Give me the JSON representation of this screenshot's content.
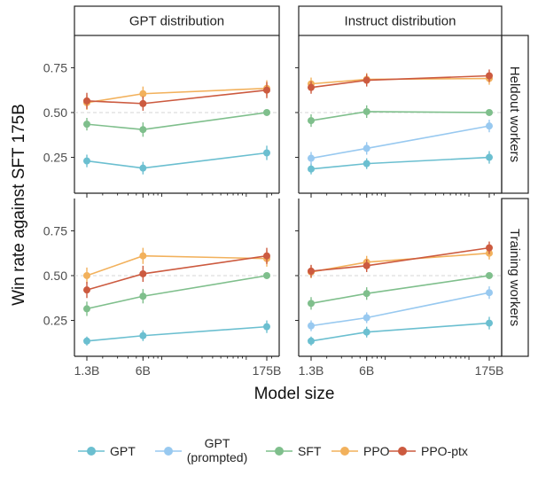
{
  "chart_data": {
    "type": "line",
    "ylabel": "Win rate against SFT 175B",
    "xlabel": "Model size",
    "x_categories": [
      "1.3B",
      "6B",
      "175B"
    ],
    "x_values_billions": [
      1.3,
      6,
      175
    ],
    "x_scale": "log",
    "yticks": [
      0.25,
      0.5,
      0.75
    ],
    "yticks_labels": [
      "0.25",
      "0.50",
      "0.75"
    ],
    "ylim": [
      0.05,
      0.93
    ],
    "reference_line": 0.5,
    "columns": [
      "GPT distribution",
      "Instruct distribution"
    ],
    "rows": [
      "Heldout workers",
      "Training workers"
    ],
    "legend_position": "bottom",
    "series_styles": [
      {
        "key": "gpt",
        "name": "GPT",
        "color": "#6bbfd0"
      },
      {
        "key": "gpt_prompted",
        "name": "GPT (prompted)",
        "name_lines": [
          "GPT",
          "(prompted)"
        ],
        "color": "#98c9f0"
      },
      {
        "key": "sft",
        "name": "SFT",
        "color": "#7fbf8c"
      },
      {
        "key": "ppo",
        "name": "PPO",
        "color": "#f2b15c"
      },
      {
        "key": "ppo_ptx",
        "name": "PPO-ptx",
        "color": "#cc5a3f"
      }
    ],
    "panels": [
      {
        "row": "Heldout workers",
        "column": "GPT distribution",
        "series": [
          {
            "key": "gpt",
            "values": [
              0.23,
              0.19,
              0.275
            ],
            "err": [
              0.035,
              0.035,
              0.04
            ]
          },
          {
            "key": "sft",
            "values": [
              0.435,
              0.405,
              0.5
            ],
            "err": [
              0.035,
              0.04,
              0.015
            ]
          },
          {
            "key": "ppo",
            "values": [
              0.555,
              0.605,
              0.635
            ],
            "err": [
              0.04,
              0.04,
              0.045
            ]
          },
          {
            "key": "ppo_ptx",
            "values": [
              0.565,
              0.55,
              0.625
            ],
            "err": [
              0.045,
              0.04,
              0.045
            ]
          }
        ]
      },
      {
        "row": "Heldout workers",
        "column": "Instruct distribution",
        "series": [
          {
            "key": "gpt",
            "values": [
              0.185,
              0.215,
              0.25
            ],
            "err": [
              0.03,
              0.03,
              0.035
            ]
          },
          {
            "key": "gpt_prompted",
            "values": [
              0.245,
              0.3,
              0.425
            ],
            "err": [
              0.035,
              0.035,
              0.035
            ]
          },
          {
            "key": "sft",
            "values": [
              0.455,
              0.505,
              0.5
            ],
            "err": [
              0.035,
              0.035,
              0.01
            ]
          },
          {
            "key": "ppo",
            "values": [
              0.66,
              0.685,
              0.69
            ],
            "err": [
              0.035,
              0.035,
              0.035
            ]
          },
          {
            "key": "ppo_ptx",
            "values": [
              0.64,
              0.68,
              0.705
            ],
            "err": [
              0.035,
              0.035,
              0.035
            ]
          }
        ]
      },
      {
        "row": "Training workers",
        "column": "GPT distribution",
        "series": [
          {
            "key": "gpt",
            "values": [
              0.135,
              0.165,
              0.215
            ],
            "err": [
              0.025,
              0.03,
              0.035
            ]
          },
          {
            "key": "sft",
            "values": [
              0.315,
              0.385,
              0.5
            ],
            "err": [
              0.04,
              0.04,
              0.015
            ]
          },
          {
            "key": "ppo",
            "values": [
              0.5,
              0.61,
              0.595
            ],
            "err": [
              0.045,
              0.045,
              0.045
            ]
          },
          {
            "key": "ppo_ptx",
            "values": [
              0.42,
              0.51,
              0.61
            ],
            "err": [
              0.045,
              0.045,
              0.045
            ]
          }
        ]
      },
      {
        "row": "Training workers",
        "column": "Instruct distribution",
        "series": [
          {
            "key": "gpt",
            "values": [
              0.135,
              0.185,
              0.235
            ],
            "err": [
              0.025,
              0.03,
              0.035
            ]
          },
          {
            "key": "gpt_prompted",
            "values": [
              0.22,
              0.265,
              0.405
            ],
            "err": [
              0.03,
              0.03,
              0.035
            ]
          },
          {
            "key": "sft",
            "values": [
              0.345,
              0.4,
              0.5
            ],
            "err": [
              0.035,
              0.035,
              0.015
            ]
          },
          {
            "key": "ppo",
            "values": [
              0.52,
              0.575,
              0.625
            ],
            "err": [
              0.035,
              0.035,
              0.035
            ]
          },
          {
            "key": "ppo_ptx",
            "values": [
              0.525,
              0.555,
              0.655
            ],
            "err": [
              0.035,
              0.035,
              0.035
            ]
          }
        ]
      }
    ]
  }
}
